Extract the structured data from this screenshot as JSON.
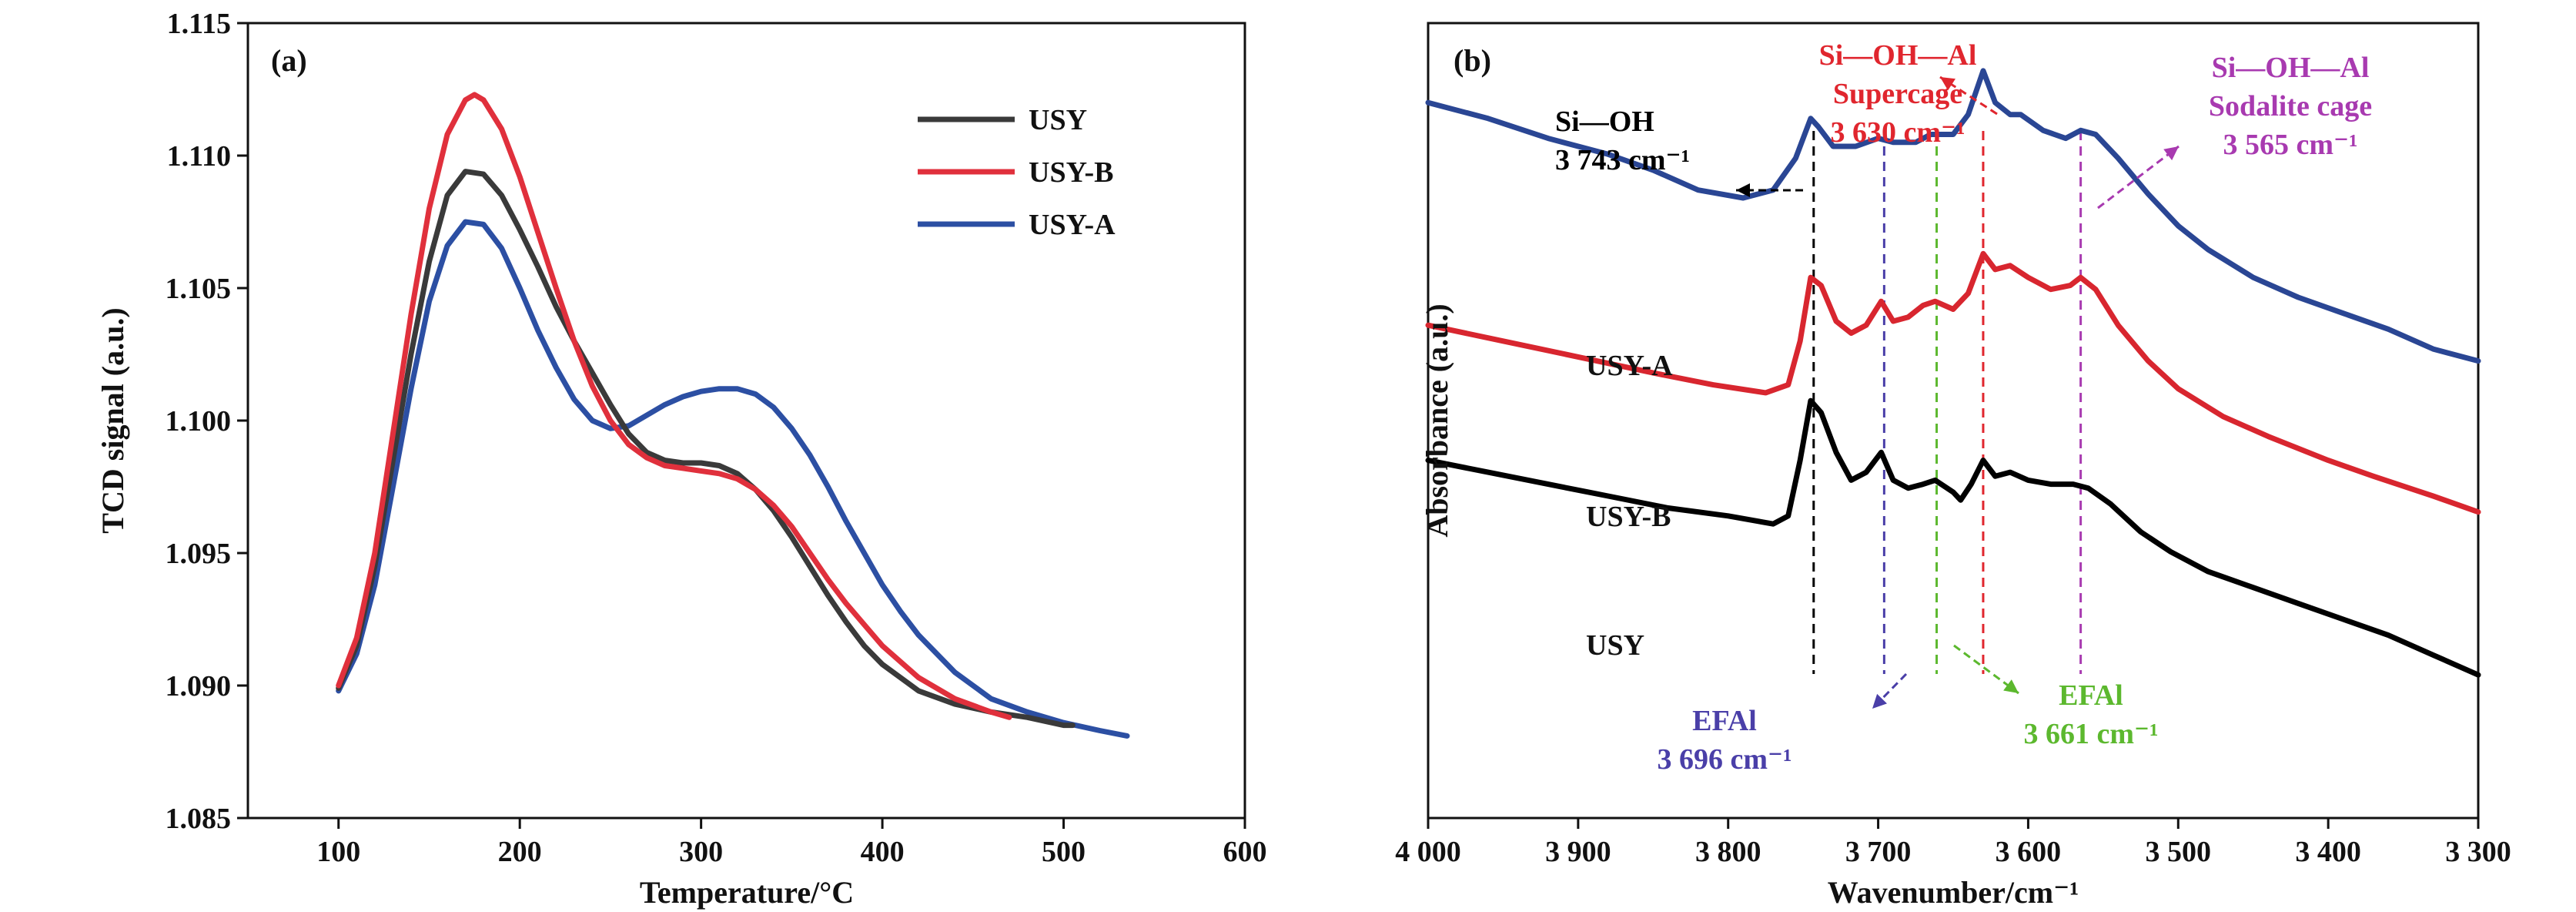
{
  "colors": {
    "USY": "#3a3a3a",
    "USY-B": "#e0303c",
    "USY-A": "#2c4fa3",
    "IR_USY": "#000000",
    "IR_USY-B": "#d8262f",
    "IR_USY-A": "#2a4694",
    "purple": "#a83ab0",
    "indigo": "#4a3fa8",
    "green": "#5cb82e",
    "red": "#e0262e"
  },
  "chart_data": [
    {
      "panel": "(a)",
      "type": "line",
      "xlabel": "Temperature/°C",
      "ylabel": "TCD signal (a.u.)",
      "xlim": [
        50,
        600
      ],
      "ylim": [
        1.085,
        1.115
      ],
      "x_ticks": [
        "100",
        "200",
        "300",
        "400",
        "500",
        "600"
      ],
      "y_ticks": [
        "1.085",
        "1.090",
        "1.095",
        "1.100",
        "1.105",
        "1.110",
        "1.115"
      ],
      "legend_position": "top-right",
      "series": [
        {
          "name": "USY",
          "color_key": "USY",
          "points": [
            [
              100,
              1.0899
            ],
            [
              110,
              1.0915
            ],
            [
              120,
              1.0945
            ],
            [
              130,
              1.0985
            ],
            [
              140,
              1.1025
            ],
            [
              150,
              1.106
            ],
            [
              160,
              1.1085
            ],
            [
              170,
              1.1094
            ],
            [
              180,
              1.1093
            ],
            [
              190,
              1.1085
            ],
            [
              200,
              1.1072
            ],
            [
              210,
              1.1058
            ],
            [
              220,
              1.1043
            ],
            [
              230,
              1.103
            ],
            [
              240,
              1.1018
            ],
            [
              250,
              1.1006
            ],
            [
              260,
              1.0995
            ],
            [
              270,
              1.0988
            ],
            [
              280,
              1.0985
            ],
            [
              290,
              1.0984
            ],
            [
              300,
              1.0984
            ],
            [
              310,
              1.0983
            ],
            [
              320,
              1.098
            ],
            [
              330,
              1.0974
            ],
            [
              340,
              1.0966
            ],
            [
              350,
              1.0956
            ],
            [
              360,
              1.0945
            ],
            [
              370,
              1.0934
            ],
            [
              380,
              1.0924
            ],
            [
              390,
              1.0915
            ],
            [
              400,
              1.0908
            ],
            [
              420,
              1.0898
            ],
            [
              440,
              1.0893
            ],
            [
              460,
              1.089
            ],
            [
              480,
              1.0888
            ],
            [
              500,
              1.0885
            ],
            [
              505,
              1.0885
            ]
          ]
        },
        {
          "name": "USY-B",
          "color_key": "USY-B",
          "points": [
            [
              100,
              1.09
            ],
            [
              110,
              1.0918
            ],
            [
              120,
              1.095
            ],
            [
              130,
              1.0995
            ],
            [
              140,
              1.104
            ],
            [
              150,
              1.108
            ],
            [
              160,
              1.1108
            ],
            [
              170,
              1.1121
            ],
            [
              175,
              1.1123
            ],
            [
              180,
              1.1121
            ],
            [
              190,
              1.111
            ],
            [
              200,
              1.1092
            ],
            [
              210,
              1.1071
            ],
            [
              220,
              1.105
            ],
            [
              230,
              1.103
            ],
            [
              240,
              1.1013
            ],
            [
              250,
              1.1
            ],
            [
              260,
              1.0991
            ],
            [
              270,
              1.0986
            ],
            [
              280,
              1.0983
            ],
            [
              290,
              1.0982
            ],
            [
              300,
              1.0981
            ],
            [
              310,
              1.098
            ],
            [
              320,
              1.0978
            ],
            [
              330,
              1.0974
            ],
            [
              340,
              1.0968
            ],
            [
              350,
              1.096
            ],
            [
              360,
              1.095
            ],
            [
              370,
              1.094
            ],
            [
              380,
              1.0931
            ],
            [
              390,
              1.0923
            ],
            [
              400,
              1.0915
            ],
            [
              420,
              1.0903
            ],
            [
              440,
              1.0895
            ],
            [
              460,
              1.089
            ],
            [
              470,
              1.0888
            ]
          ]
        },
        {
          "name": "USY-A",
          "color_key": "USY-A",
          "points": [
            [
              100,
              1.0898
            ],
            [
              110,
              1.0912
            ],
            [
              120,
              1.0938
            ],
            [
              130,
              1.0975
            ],
            [
              140,
              1.1012
            ],
            [
              150,
              1.1045
            ],
            [
              160,
              1.1066
            ],
            [
              170,
              1.1075
            ],
            [
              180,
              1.1074
            ],
            [
              190,
              1.1065
            ],
            [
              200,
              1.105
            ],
            [
              210,
              1.1034
            ],
            [
              220,
              1.102
            ],
            [
              230,
              1.1008
            ],
            [
              240,
              1.1
            ],
            [
              250,
              1.0997
            ],
            [
              260,
              1.0998
            ],
            [
              270,
              1.1002
            ],
            [
              280,
              1.1006
            ],
            [
              290,
              1.1009
            ],
            [
              300,
              1.1011
            ],
            [
              310,
              1.1012
            ],
            [
              320,
              1.1012
            ],
            [
              330,
              1.101
            ],
            [
              340,
              1.1005
            ],
            [
              350,
              1.0997
            ],
            [
              360,
              1.0987
            ],
            [
              370,
              1.0975
            ],
            [
              380,
              1.0962
            ],
            [
              390,
              1.095
            ],
            [
              400,
              1.0938
            ],
            [
              410,
              1.0928
            ],
            [
              420,
              1.0919
            ],
            [
              440,
              1.0905
            ],
            [
              460,
              1.0895
            ],
            [
              480,
              1.089
            ],
            [
              500,
              1.0886
            ],
            [
              520,
              1.0883
            ],
            [
              535,
              1.0881
            ]
          ]
        }
      ]
    },
    {
      "panel": "(b)",
      "type": "line",
      "xlabel": "Wavenumber/cm⁻¹",
      "ylabel": "Absorbance (a.u.)",
      "xlim": [
        4000,
        3300
      ],
      "x_reversed": true,
      "x_ticks": [
        "4 000",
        "3 900",
        "3 800",
        "3 700",
        "3 600",
        "3 500",
        "3 400",
        "3 300"
      ],
      "series": [
        {
          "name": "USY-A",
          "color_key": "IR_USY-A",
          "points": [
            [
              4000,
              0.9
            ],
            [
              3960,
              0.88
            ],
            [
              3920,
              0.855
            ],
            [
              3880,
              0.835
            ],
            [
              3850,
              0.815
            ],
            [
              3820,
              0.79
            ],
            [
              3790,
              0.78
            ],
            [
              3770,
              0.79
            ],
            [
              3755,
              0.83
            ],
            [
              3745,
              0.88
            ],
            [
              3740,
              0.87
            ],
            [
              3730,
              0.845
            ],
            [
              3715,
              0.845
            ],
            [
              3700,
              0.855
            ],
            [
              3690,
              0.85
            ],
            [
              3675,
              0.85
            ],
            [
              3665,
              0.86
            ],
            [
              3650,
              0.86
            ],
            [
              3640,
              0.885
            ],
            [
              3630,
              0.94
            ],
            [
              3622,
              0.9
            ],
            [
              3612,
              0.885
            ],
            [
              3605,
              0.885
            ],
            [
              3590,
              0.865
            ],
            [
              3575,
              0.855
            ],
            [
              3565,
              0.865
            ],
            [
              3555,
              0.86
            ],
            [
              3540,
              0.83
            ],
            [
              3520,
              0.785
            ],
            [
              3500,
              0.745
            ],
            [
              3480,
              0.715
            ],
            [
              3450,
              0.68
            ],
            [
              3420,
              0.655
            ],
            [
              3390,
              0.635
            ],
            [
              3360,
              0.615
            ],
            [
              3330,
              0.59
            ],
            [
              3300,
              0.575
            ]
          ]
        },
        {
          "name": "USY-B",
          "color_key": "IR_USY-B",
          "points": [
            [
              4000,
              0.62
            ],
            [
              3950,
              0.6
            ],
            [
              3900,
              0.58
            ],
            [
              3850,
              0.56
            ],
            [
              3810,
              0.545
            ],
            [
              3775,
              0.535
            ],
            [
              3760,
              0.545
            ],
            [
              3752,
              0.6
            ],
            [
              3745,
              0.68
            ],
            [
              3738,
              0.67
            ],
            [
              3728,
              0.625
            ],
            [
              3718,
              0.61
            ],
            [
              3708,
              0.62
            ],
            [
              3698,
              0.65
            ],
            [
              3690,
              0.625
            ],
            [
              3680,
              0.63
            ],
            [
              3670,
              0.645
            ],
            [
              3662,
              0.65
            ],
            [
              3650,
              0.64
            ],
            [
              3640,
              0.66
            ],
            [
              3630,
              0.71
            ],
            [
              3622,
              0.69
            ],
            [
              3612,
              0.695
            ],
            [
              3600,
              0.68
            ],
            [
              3585,
              0.665
            ],
            [
              3572,
              0.67
            ],
            [
              3565,
              0.68
            ],
            [
              3555,
              0.665
            ],
            [
              3540,
              0.62
            ],
            [
              3520,
              0.575
            ],
            [
              3500,
              0.54
            ],
            [
              3470,
              0.505
            ],
            [
              3440,
              0.48
            ],
            [
              3400,
              0.45
            ],
            [
              3370,
              0.43
            ],
            [
              3330,
              0.405
            ],
            [
              3300,
              0.385
            ]
          ]
        },
        {
          "name": "USY",
          "color_key": "IR_USY",
          "points": [
            [
              4000,
              0.45
            ],
            [
              3960,
              0.435
            ],
            [
              3920,
              0.42
            ],
            [
              3880,
              0.405
            ],
            [
              3840,
              0.39
            ],
            [
              3800,
              0.38
            ],
            [
              3770,
              0.37
            ],
            [
              3760,
              0.38
            ],
            [
              3752,
              0.45
            ],
            [
              3745,
              0.525
            ],
            [
              3738,
              0.51
            ],
            [
              3728,
              0.46
            ],
            [
              3718,
              0.425
            ],
            [
              3708,
              0.435
            ],
            [
              3698,
              0.46
            ],
            [
              3690,
              0.425
            ],
            [
              3680,
              0.415
            ],
            [
              3670,
              0.42
            ],
            [
              3662,
              0.425
            ],
            [
              3650,
              0.41
            ],
            [
              3645,
              0.4
            ],
            [
              3638,
              0.42
            ],
            [
              3630,
              0.45
            ],
            [
              3622,
              0.43
            ],
            [
              3612,
              0.435
            ],
            [
              3600,
              0.425
            ],
            [
              3585,
              0.42
            ],
            [
              3570,
              0.42
            ],
            [
              3560,
              0.415
            ],
            [
              3545,
              0.395
            ],
            [
              3525,
              0.36
            ],
            [
              3505,
              0.335
            ],
            [
              3480,
              0.31
            ],
            [
              3450,
              0.29
            ],
            [
              3420,
              0.27
            ],
            [
              3390,
              0.25
            ],
            [
              3360,
              0.23
            ],
            [
              3330,
              0.205
            ],
            [
              3300,
              0.18
            ]
          ]
        }
      ],
      "curve_labels": [
        "USY-A",
        "USY-B",
        "USY"
      ],
      "annotations": [
        {
          "lines": [
            "Si—OH",
            "3 743 cm⁻¹"
          ],
          "color_key": "IR_USY"
        },
        {
          "lines": [
            "Si—OH—Al",
            "Supercage",
            "3 630 cm⁻¹"
          ],
          "color_key": "red"
        },
        {
          "lines": [
            "Si—OH—Al",
            "Sodalite cage",
            "3 565 cm⁻¹"
          ],
          "color_key": "purple"
        },
        {
          "lines": [
            "EFAl",
            "3 696 cm⁻¹"
          ],
          "color_key": "indigo"
        },
        {
          "lines": [
            "EFAl",
            "3 661 cm⁻¹"
          ],
          "color_key": "green"
        }
      ],
      "marker_lines": [
        {
          "x": 3743,
          "color_key": "IR_USY"
        },
        {
          "x": 3696,
          "color_key": "indigo"
        },
        {
          "x": 3661,
          "color_key": "green"
        },
        {
          "x": 3630,
          "color_key": "red"
        },
        {
          "x": 3565,
          "color_key": "purple"
        }
      ]
    }
  ]
}
